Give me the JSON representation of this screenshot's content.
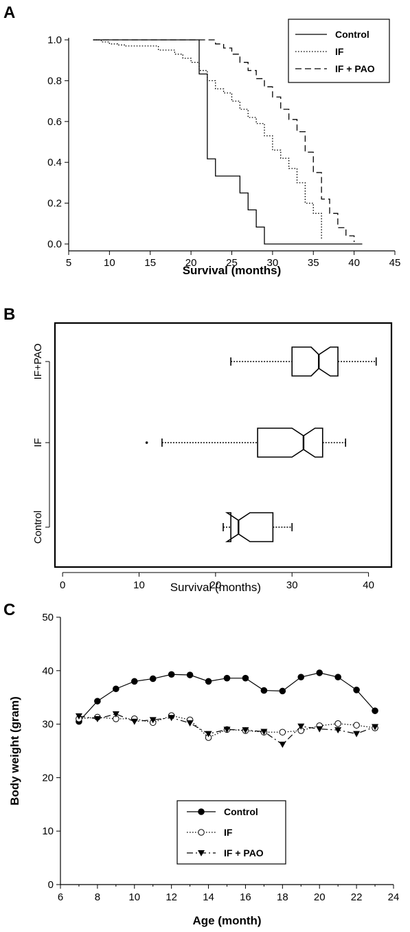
{
  "chart_data": [
    {
      "panel": "A",
      "type": "line",
      "xlabel": "Survival (months)",
      "ylabel": "",
      "xlim": [
        5,
        45
      ],
      "ylim": [
        0,
        1
      ],
      "xticks": [
        "5",
        "10",
        "15",
        "20",
        "25",
        "30",
        "35",
        "40",
        "45"
      ],
      "yticks": [
        "0.0",
        "0.2",
        "0.4",
        "0.6",
        "0.8",
        "1.0"
      ],
      "legend_position": "top-right",
      "series": [
        {
          "name": "Control",
          "dash": "solid",
          "x": [
            8,
            20,
            21,
            22,
            23,
            26,
            27,
            28,
            29,
            41
          ],
          "y": [
            1.0,
            1.0,
            0.833,
            0.417,
            0.333,
            0.25,
            0.167,
            0.083,
            0.0,
            0.0
          ]
        },
        {
          "name": "IF",
          "dash": "dotted",
          "x": [
            8,
            9,
            10,
            11,
            12,
            16,
            18,
            19,
            20,
            21,
            22,
            23,
            24,
            25,
            26,
            27,
            28,
            29,
            30,
            31,
            32,
            33,
            34,
            35,
            36
          ],
          "y": [
            1.0,
            0.99,
            0.98,
            0.975,
            0.97,
            0.95,
            0.93,
            0.91,
            0.89,
            0.85,
            0.8,
            0.76,
            0.74,
            0.7,
            0.66,
            0.62,
            0.59,
            0.53,
            0.46,
            0.42,
            0.37,
            0.3,
            0.2,
            0.15,
            0.02
          ]
        },
        {
          "name": "IF + PAO",
          "dash": "dashed",
          "x": [
            8,
            22,
            23,
            24,
            25,
            26,
            27,
            28,
            29,
            30,
            31,
            32,
            33,
            34,
            35,
            36,
            37,
            38,
            39,
            40
          ],
          "y": [
            1.0,
            1.0,
            0.98,
            0.96,
            0.93,
            0.89,
            0.85,
            0.81,
            0.77,
            0.72,
            0.66,
            0.61,
            0.55,
            0.45,
            0.35,
            0.22,
            0.15,
            0.08,
            0.04,
            0.01
          ]
        }
      ]
    },
    {
      "panel": "B",
      "type": "box",
      "xlabel": "Survival (months)",
      "xlim": [
        -1,
        43
      ],
      "xticks": [
        "0",
        "10",
        "20",
        "30",
        "40"
      ],
      "series": [
        {
          "name": "Control",
          "whisker_low": 21,
          "q1": 22,
          "median": 23,
          "q3": 27.5,
          "whisker_high": 30,
          "notch_low": 21.5,
          "notch_high": 24.5,
          "outliers": []
        },
        {
          "name": "IF",
          "whisker_low": 13,
          "q1": 25.5,
          "median": 31.5,
          "q3": 34,
          "whisker_high": 37,
          "notch_low": 30,
          "notch_high": 33,
          "outliers": [
            11
          ]
        },
        {
          "name": "IF+PAO",
          "whisker_low": 22,
          "q1": 30,
          "median": 33.5,
          "q3": 36,
          "whisker_high": 41,
          "notch_low": 32.5,
          "notch_high": 35
        }
      ]
    },
    {
      "panel": "C",
      "type": "line",
      "xlabel": "Age (month)",
      "ylabel": "Body weight (gram)",
      "xlim": [
        6,
        24
      ],
      "ylim": [
        0,
        50
      ],
      "xticks": [
        "6",
        "8",
        "10",
        "12",
        "14",
        "16",
        "18",
        "20",
        "22",
        "24"
      ],
      "yticks": [
        "0",
        "10",
        "20",
        "30",
        "40",
        "50"
      ],
      "legend_position": "center",
      "x": [
        7,
        8,
        9,
        10,
        11,
        12,
        13,
        14,
        15,
        16,
        17,
        18,
        19,
        20,
        21,
        22,
        23
      ],
      "series": [
        {
          "name": "Control",
          "marker": "filled-circle",
          "dash": "solid",
          "values": [
            30.5,
            34.3,
            36.6,
            38.0,
            38.5,
            39.3,
            39.2,
            38.0,
            38.6,
            38.6,
            36.3,
            36.2,
            38.8,
            39.6,
            38.8,
            36.4,
            32.5
          ]
        },
        {
          "name": "IF",
          "marker": "open-circle",
          "dash": "dotted",
          "values": [
            31.0,
            31.3,
            31.0,
            31.0,
            30.3,
            31.6,
            30.8,
            27.5,
            29.0,
            28.8,
            28.5,
            28.5,
            28.8,
            29.7,
            30.1,
            29.8,
            29.3
          ]
        },
        {
          "name": "IF + PAO",
          "marker": "filled-triangle-down",
          "dash": "dashdot",
          "values": [
            31.5,
            31.0,
            31.9,
            30.5,
            30.8,
            31.2,
            30.2,
            28.2,
            29.0,
            28.9,
            28.6,
            26.2,
            29.6,
            29.1,
            28.9,
            28.2,
            29.5
          ]
        }
      ]
    }
  ]
}
